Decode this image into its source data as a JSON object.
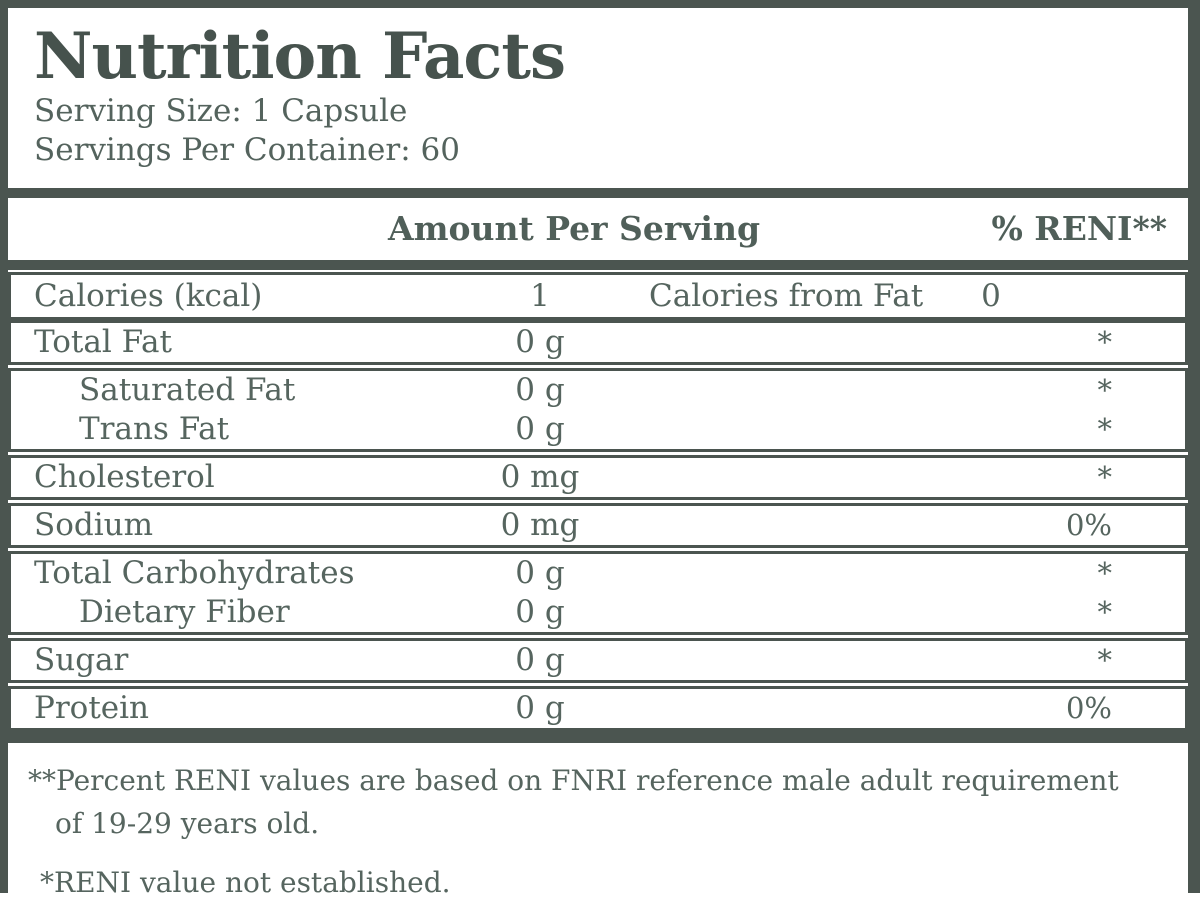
{
  "colors": {
    "frame": "#4b5550",
    "body_text": "#56655f",
    "title_text": "#46524d",
    "background": "#ffffff"
  },
  "header_section": {
    "title": "Nutrition Facts",
    "serving_size": "Serving Size: 1 Capsule",
    "servings_per_container": "Servings Per Container: 60"
  },
  "table": {
    "amount_header": "Amount Per Serving",
    "reni_header": "% RENI**",
    "calories_row": {
      "label": "Calories (kcal)",
      "value": "1",
      "sub_label": "Calories from Fat",
      "sub_value": "0"
    },
    "groups": [
      {
        "rows": [
          {
            "label": "Total Fat",
            "amount": "0 g",
            "reni": "*",
            "indent": false
          }
        ]
      },
      {
        "rows": [
          {
            "label": "Saturated Fat",
            "amount": "0 g",
            "reni": "*",
            "indent": true
          },
          {
            "label": "Trans Fat",
            "amount": "0 g",
            "reni": "*",
            "indent": true
          }
        ]
      },
      {
        "rows": [
          {
            "label": "Cholesterol",
            "amount": "0 mg",
            "reni": "*",
            "indent": false
          }
        ]
      },
      {
        "rows": [
          {
            "label": "Sodium",
            "amount": "0 mg",
            "reni": "0%",
            "indent": false
          }
        ]
      },
      {
        "rows": [
          {
            "label": "Total Carbohydrates",
            "amount": "0 g",
            "reni": "*",
            "indent": false
          },
          {
            "label": "Dietary Fiber",
            "amount": "0 g",
            "reni": "*",
            "indent": true
          }
        ]
      },
      {
        "rows": [
          {
            "label": "Sugar",
            "amount": "0 g",
            "reni": "*",
            "indent": false
          }
        ]
      },
      {
        "rows": [
          {
            "label": "Protein",
            "amount": "0 g",
            "reni": "0%",
            "indent": false
          }
        ]
      }
    ]
  },
  "footnotes": {
    "reni_note_line1": "**Percent RENI values are based on FNRI reference male adult requirement",
    "reni_note_line2": "of 19-29 years old.",
    "not_established_note": "*RENI value not established."
  }
}
